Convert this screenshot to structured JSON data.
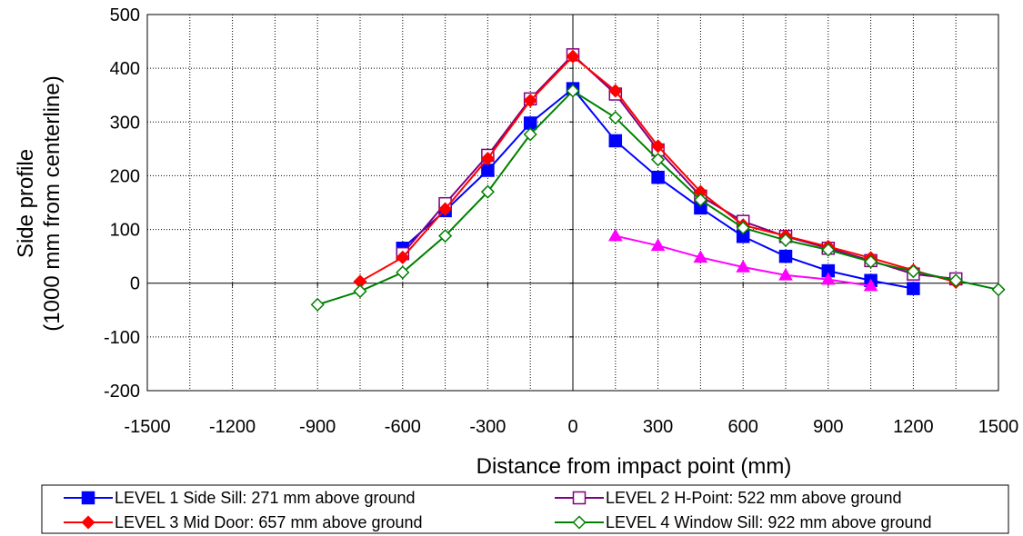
{
  "chart_data": {
    "type": "line",
    "xlabel": "Distance from impact point (mm)",
    "ylabel_line1": "Side profile",
    "ylabel_line2": "(1000 mm from centerline)",
    "xlim": [
      -1500,
      1500
    ],
    "ylim": [
      -200,
      500
    ],
    "xticks": [
      -1500,
      -1200,
      -900,
      -600,
      -300,
      0,
      300,
      600,
      900,
      1200,
      1500
    ],
    "yticks": [
      -200,
      -100,
      0,
      100,
      200,
      300,
      400,
      500
    ],
    "xgrid_step": 150,
    "ygrid_step": 100,
    "grid": true,
    "legend_position": "bottom",
    "series": [
      {
        "name": "LEVEL 1 Side Sill:  271 mm above ground",
        "color": "#0000ff",
        "marker": "square-filled",
        "in_legend": true,
        "x": [
          -600,
          -450,
          -300,
          -150,
          0,
          150,
          300,
          450,
          600,
          750,
          900,
          1050,
          1200
        ],
        "y": [
          65,
          135,
          210,
          298,
          362,
          265,
          197,
          140,
          87,
          50,
          23,
          5,
          -10
        ]
      },
      {
        "name": "LEVEL 2 H-Point:  522 mm above ground",
        "color": "#800080",
        "marker": "square-open",
        "in_legend": true,
        "x": [
          -600,
          -450,
          -300,
          -150,
          0,
          150,
          300,
          450,
          600,
          750,
          900,
          1050,
          1200,
          1350
        ],
        "y": [
          55,
          148,
          238,
          343,
          425,
          352,
          248,
          162,
          115,
          87,
          65,
          42,
          17,
          8
        ]
      },
      {
        "name": "LEVEL 3 Mid Door:  657 mm above ground",
        "color": "#ff0000",
        "marker": "diamond-filled",
        "in_legend": true,
        "x": [
          -750,
          -600,
          -450,
          -300,
          -150,
          0,
          150,
          300,
          450,
          600,
          750,
          900,
          1050,
          1200,
          1350
        ],
        "y": [
          3,
          48,
          138,
          232,
          340,
          422,
          358,
          255,
          170,
          108,
          88,
          68,
          47,
          24,
          2
        ]
      },
      {
        "name": "LEVEL 4 Window Sill:  922 mm above ground",
        "color": "#008000",
        "marker": "diamond-open",
        "in_legend": true,
        "x": [
          -900,
          -750,
          -600,
          -450,
          -300,
          -150,
          0,
          150,
          300,
          450,
          600,
          750,
          900,
          1050,
          1200,
          1350,
          1500
        ],
        "y": [
          -40,
          -15,
          20,
          88,
          170,
          277,
          358,
          308,
          230,
          155,
          103,
          80,
          62,
          40,
          22,
          5,
          -12
        ]
      },
      {
        "name": "",
        "color": "#ff00ff",
        "marker": "triangle-filled",
        "in_legend": false,
        "x": [
          150,
          300,
          450,
          600,
          750,
          900,
          1050
        ],
        "y": [
          88,
          70,
          48,
          30,
          15,
          7,
          -5
        ]
      }
    ]
  }
}
